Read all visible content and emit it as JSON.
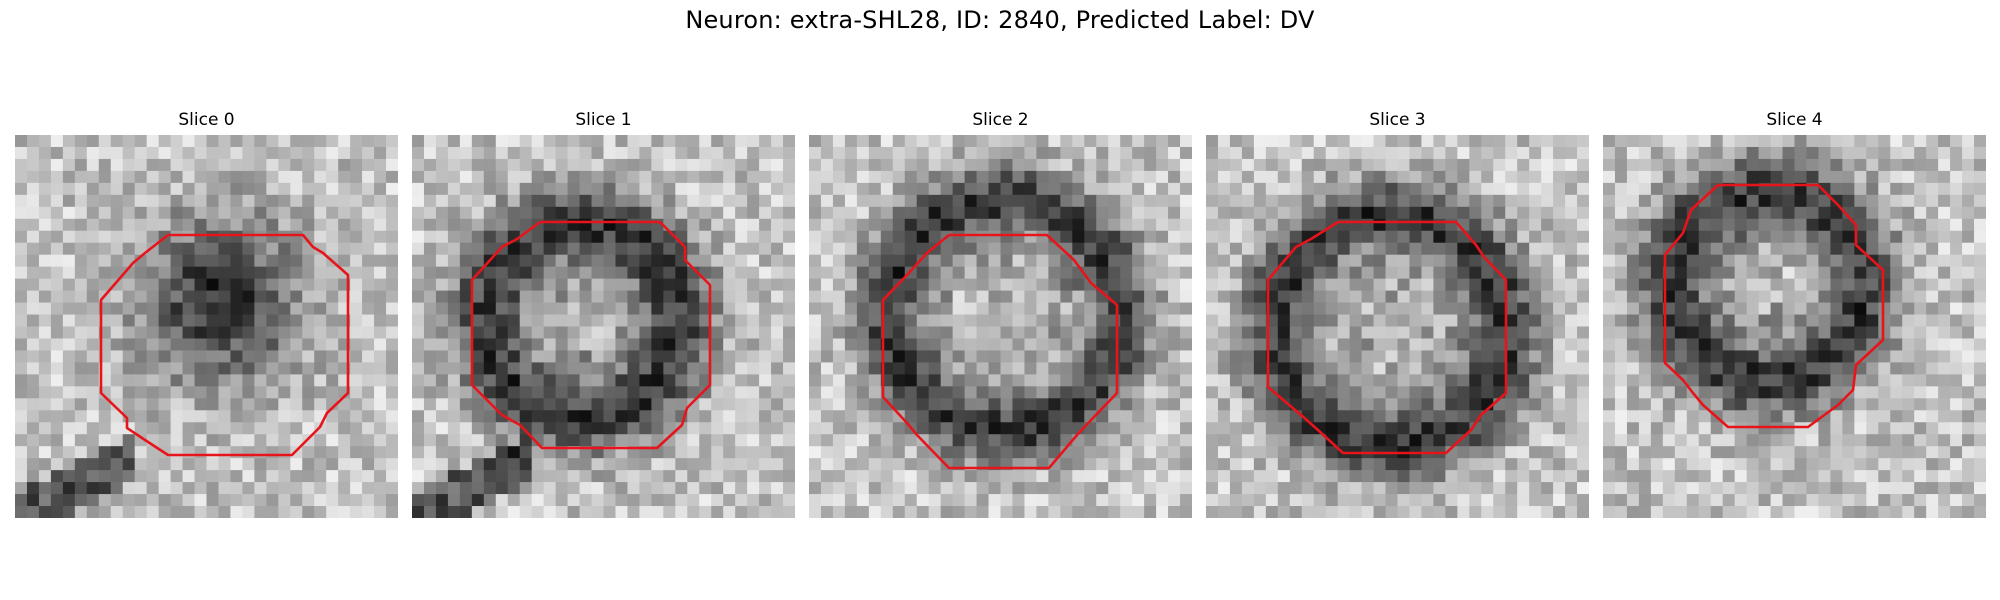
{
  "figure": {
    "title": "Neuron: extra-SHL28, ID: 2840, Predicted Label: DV"
  },
  "contour_color": "#e8141b",
  "panels": [
    {
      "title": "Slice 0"
    },
    {
      "title": "Slice 1"
    },
    {
      "title": "Slice 2"
    },
    {
      "title": "Slice 3"
    },
    {
      "title": "Slice 4"
    }
  ]
}
